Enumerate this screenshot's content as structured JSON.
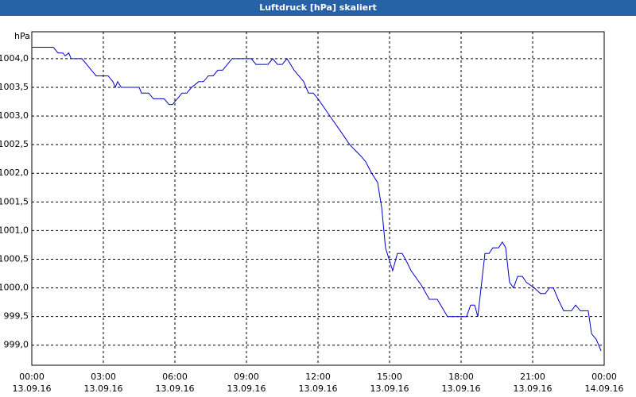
{
  "chart_data": {
    "type": "line",
    "title": "Luftdruck [hPa] skaliert",
    "y_unit": "hPa",
    "series": [
      {
        "color": "#0000cc",
        "x": [
          0,
          0.9,
          1.1,
          1.3,
          1.4,
          1.55,
          1.65,
          1.75,
          2.1,
          2.3,
          2.5,
          2.7,
          3.2,
          3.4,
          3.5,
          3.6,
          3.75,
          3.9,
          4.5,
          4.6,
          4.9,
          5.1,
          5.4,
          5.55,
          5.75,
          5.9,
          6.1,
          6.3,
          6.5,
          6.7,
          7.0,
          7.2,
          7.4,
          7.6,
          7.8,
          8.0,
          8.2,
          8.4,
          8.6,
          9.0,
          9.2,
          9.4,
          9.9,
          10.1,
          10.3,
          10.5,
          10.7,
          11.0,
          11.4,
          11.6,
          11.8,
          12.0,
          12.5,
          13.0,
          13.33,
          13.8,
          14.0,
          14.25,
          14.5,
          14.67,
          14.83,
          15.13,
          15.33,
          15.53,
          15.73,
          15.9,
          16.33,
          16.67,
          17.0,
          17.43,
          18.23,
          18.4,
          18.57,
          18.7,
          19.0,
          19.17,
          19.33,
          19.57,
          19.73,
          19.87,
          20.03,
          20.2,
          20.37,
          20.57,
          20.73,
          21.07,
          21.33,
          21.53,
          21.7,
          21.87,
          22.07,
          22.3,
          22.63,
          22.8,
          23.0,
          23.33,
          23.47,
          23.67,
          23.87
        ],
        "values": [
          1004.2,
          1004.2,
          1004.1,
          1004.1,
          1004.05,
          1004.1,
          1004.0,
          1004.0,
          1004.0,
          1003.9,
          1003.8,
          1003.7,
          1003.7,
          1003.6,
          1003.5,
          1003.6,
          1003.5,
          1003.5,
          1003.5,
          1003.4,
          1003.4,
          1003.3,
          1003.3,
          1003.3,
          1003.2,
          1003.2,
          1003.3,
          1003.4,
          1003.4,
          1003.5,
          1003.6,
          1003.6,
          1003.7,
          1003.7,
          1003.8,
          1003.8,
          1003.9,
          1004.0,
          1004.0,
          1004.0,
          1004.0,
          1003.9,
          1003.9,
          1004.0,
          1003.9,
          1003.9,
          1004.0,
          1003.8,
          1003.6,
          1003.4,
          1003.4,
          1003.3,
          1003.0,
          1002.7,
          1002.5,
          1002.3,
          1002.2,
          1002.0,
          1001.84,
          1001.4,
          1000.7,
          1000.3,
          1000.6,
          1000.6,
          1000.45,
          1000.3,
          1000.05,
          999.8,
          999.8,
          999.5,
          999.5,
          999.7,
          999.7,
          999.5,
          1000.6,
          1000.6,
          1000.7,
          1000.7,
          1000.8,
          1000.7,
          1000.1,
          1000.0,
          1000.2,
          1000.2,
          1000.1,
          1000.0,
          999.9,
          999.9,
          1000.0,
          1000.0,
          999.8,
          999.6,
          999.6,
          999.7,
          999.6,
          999.6,
          999.2,
          999.1,
          998.9
        ]
      }
    ],
    "xlim": [
      0,
      24
    ],
    "xticks": [
      {
        "value": 0,
        "label": "00:00"
      },
      {
        "value": 3,
        "label": "03:00"
      },
      {
        "value": 6,
        "label": "06:00"
      },
      {
        "value": 9,
        "label": "09:00"
      },
      {
        "value": 12,
        "label": "12:00"
      },
      {
        "value": 15,
        "label": "15:00"
      },
      {
        "value": 18,
        "label": "18:00"
      },
      {
        "value": 21,
        "label": "21:00"
      },
      {
        "value": 24,
        "label": "00:00"
      }
    ],
    "xtick_dates": [
      "13.09.16",
      "13.09.16",
      "13.09.16",
      "13.09.16",
      "13.09.16",
      "13.09.16",
      "13.09.16",
      "13.09.16",
      "14.09.16"
    ],
    "ylim": [
      998.65,
      1004.47
    ],
    "yticks": [
      {
        "value": 999.0,
        "label": "999,0"
      },
      {
        "value": 999.5,
        "label": "999,5"
      },
      {
        "value": 1000.0,
        "label": "1000,0"
      },
      {
        "value": 1000.5,
        "label": "1000,5"
      },
      {
        "value": 1001.0,
        "label": "1001,0"
      },
      {
        "value": 1001.5,
        "label": "1001,5"
      },
      {
        "value": 1002.0,
        "label": "1002,0"
      },
      {
        "value": 1002.5,
        "label": "1002,5"
      },
      {
        "value": 1003.0,
        "label": "1003,0"
      },
      {
        "value": 1003.5,
        "label": "1003,5"
      },
      {
        "value": 1004.0,
        "label": "1004,0"
      }
    ],
    "grid": true
  }
}
